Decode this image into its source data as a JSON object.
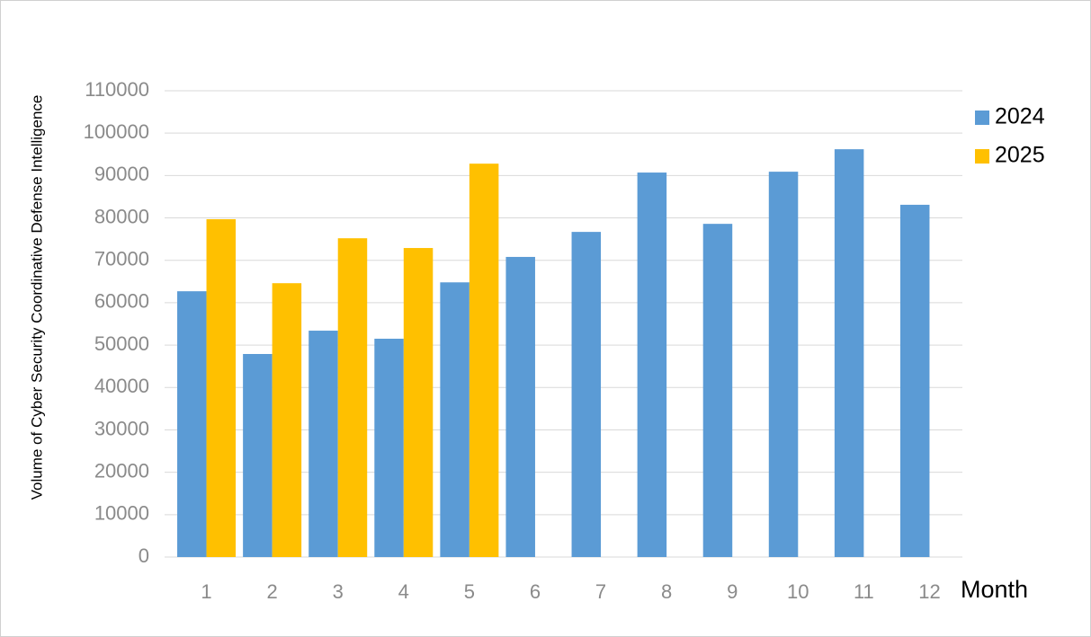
{
  "chart_data": {
    "type": "bar",
    "y_label": "Volume of Cyber Security Coordinative Defense Intelligence",
    "x_label": "Month",
    "categories": [
      "1",
      "2",
      "3",
      "4",
      "5",
      "6",
      "7",
      "8",
      "9",
      "10",
      "11",
      "12"
    ],
    "series": [
      {
        "name": "2024",
        "color": "#5b9bd5",
        "values": [
          62700,
          47900,
          53400,
          51500,
          64800,
          70800,
          76700,
          90700,
          78600,
          90900,
          96200,
          83100
        ]
      },
      {
        "name": "2025",
        "color": "#ffc000",
        "values": [
          79700,
          64600,
          75200,
          72900,
          92800,
          null,
          null,
          null,
          null,
          null,
          null,
          null
        ]
      }
    ],
    "ylim": [
      0,
      110000
    ],
    "yticks": [
      0,
      10000,
      20000,
      30000,
      40000,
      50000,
      60000,
      70000,
      80000,
      90000,
      100000,
      110000
    ],
    "grid": true,
    "legend": "right"
  }
}
